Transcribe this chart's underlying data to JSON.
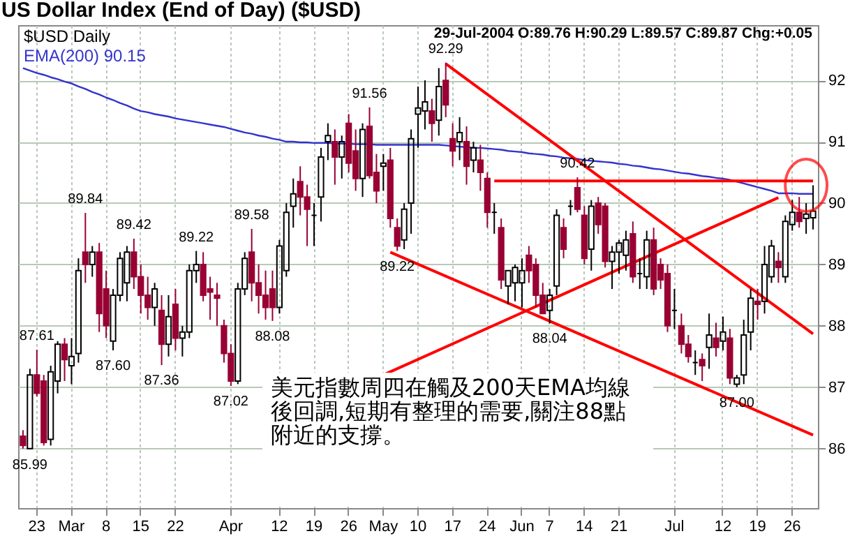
{
  "chart_data": {
    "type": "candlestick",
    "title": "US Dollar Index (End of Day) ($USD)",
    "categories": [
      null,
      null,
      "23",
      null,
      null,
      null,
      null,
      "Mar",
      null,
      null,
      null,
      null,
      "8",
      null,
      null,
      null,
      null,
      "15",
      null,
      null,
      null,
      null,
      "22",
      null,
      null,
      null,
      null,
      null,
      null,
      null,
      "Apr",
      null,
      null,
      null,
      null,
      null,
      null,
      "12",
      null,
      null,
      null,
      null,
      "19",
      null,
      null,
      null,
      null,
      "26",
      null,
      null,
      null,
      null,
      "May",
      null,
      null,
      null,
      null,
      "10",
      null,
      null,
      null,
      null,
      "17",
      null,
      null,
      null,
      null,
      "24",
      null,
      null,
      null,
      null,
      "Jun",
      null,
      null,
      null,
      "7",
      null,
      null,
      null,
      null,
      "14",
      null,
      null,
      null,
      null,
      "21",
      null,
      null,
      null,
      null,
      null,
      null,
      null,
      "Jul",
      null,
      null,
      null,
      null,
      null,
      null,
      "12",
      null,
      null,
      null,
      null,
      "19",
      null,
      null,
      null,
      null,
      "26",
      null,
      null,
      null
    ],
    "series": [
      {
        "name": "$USD Daily",
        "colors": [
          "#990033",
          "#000000",
          "#990033",
          "#990033",
          "#000000",
          "#000000",
          "#990033",
          "#000000",
          "#000000",
          "#990033",
          "#000000",
          "#990033",
          "#990033",
          "#000000",
          "#000000",
          "#000000",
          "#990033",
          "#990033",
          "#990033",
          "#000000",
          "#990033",
          "#000000",
          "#990033",
          "#000000",
          "#000000",
          "#000000",
          "#990033",
          "#990033",
          "#990033",
          "#990033",
          "#990033",
          "#000000",
          "#000000",
          "#990033",
          "#990033",
          "#990033",
          "#990033",
          "#000000",
          "#000000",
          "#000000",
          "#990033",
          "#990033",
          "#000000",
          "#000000",
          "#000000",
          "#990033",
          "#000000",
          "#990033",
          "#990033",
          "#000000",
          "#990033",
          "#990033",
          "#000000",
          "#990033",
          "#990033",
          "#000000",
          "#000000",
          "#000000",
          "#000000",
          "#990033",
          "#000000",
          "#990033",
          "#990033",
          "#000000",
          "#990033",
          "#000000",
          "#990033",
          "#990033",
          "#000000",
          "#990033",
          "#000000",
          "#000000",
          "#000000",
          "#990033",
          "#990033",
          "#990033",
          "#000000",
          "#000000",
          "#990033",
          "#000000",
          "#990033",
          "#990033",
          "#000000",
          "#990033",
          "#990033",
          "#000000",
          "#000000",
          "#000000",
          "#990033",
          "#000000",
          "#000000",
          "#990033",
          "#990033",
          "#990033",
          "#000000",
          "#990033",
          "#990033",
          "#000000",
          "#990033",
          "#000000",
          "#990033",
          "#000000",
          "#990033",
          "#000000",
          "#000000",
          "#000000",
          "#990033",
          "#000000",
          "#000000",
          "#990033",
          "#000000",
          "#000000",
          "#990033",
          "#000000",
          "#000000"
        ],
        "ohlc": [
          [
            86.2,
            86.3,
            86.0,
            86.05
          ],
          [
            86.0,
            87.3,
            85.99,
            87.2
          ],
          [
            87.2,
            87.61,
            86.85,
            86.9
          ],
          [
            87.1,
            87.2,
            86.05,
            86.1
          ],
          [
            86.15,
            87.35,
            86.05,
            87.25
          ],
          [
            87.1,
            87.75,
            86.9,
            87.7
          ],
          [
            87.7,
            87.8,
            87.1,
            87.45
          ],
          [
            87.35,
            87.8,
            87.05,
            87.5
          ],
          [
            87.55,
            89.1,
            87.4,
            88.9
          ],
          [
            89.2,
            89.84,
            88.7,
            89.0
          ],
          [
            89.0,
            89.3,
            88.8,
            89.2
          ],
          [
            89.2,
            89.35,
            87.9,
            88.2
          ],
          [
            88.6,
            88.9,
            87.8,
            88.0
          ],
          [
            87.75,
            88.6,
            87.6,
            88.5
          ],
          [
            88.5,
            89.2,
            88.4,
            89.1
          ],
          [
            88.7,
            89.3,
            88.4,
            89.2
          ],
          [
            89.2,
            89.42,
            88.6,
            88.8
          ],
          [
            88.8,
            89.0,
            88.2,
            88.5
          ],
          [
            88.5,
            88.8,
            88.1,
            88.3
          ],
          [
            88.3,
            88.7,
            88.0,
            88.6
          ],
          [
            88.25,
            88.5,
            87.36,
            87.7
          ],
          [
            87.7,
            88.5,
            87.5,
            88.15
          ],
          [
            88.35,
            88.6,
            87.6,
            87.8
          ],
          [
            87.8,
            88.0,
            87.5,
            87.9
          ],
          [
            87.9,
            89.0,
            87.8,
            88.9
          ],
          [
            88.9,
            89.22,
            88.7,
            89.0
          ],
          [
            89.0,
            89.2,
            88.4,
            88.5
          ],
          [
            88.6,
            88.8,
            88.1,
            88.55
          ],
          [
            88.5,
            88.7,
            88.0,
            88.45
          ],
          [
            88.0,
            88.1,
            87.4,
            87.55
          ],
          [
            87.55,
            87.7,
            87.02,
            87.1
          ],
          [
            87.1,
            88.7,
            87.05,
            88.6
          ],
          [
            88.6,
            89.2,
            88.5,
            89.1
          ],
          [
            89.2,
            89.58,
            88.4,
            88.7
          ],
          [
            88.7,
            89.0,
            88.2,
            88.5
          ],
          [
            88.5,
            88.9,
            88.1,
            88.3
          ],
          [
            88.6,
            88.9,
            88.08,
            88.3
          ],
          [
            88.3,
            89.4,
            88.2,
            89.3
          ],
          [
            88.9,
            90.0,
            88.8,
            89.85
          ],
          [
            89.95,
            90.4,
            89.6,
            90.15
          ],
          [
            90.35,
            90.6,
            89.8,
            90.1
          ],
          [
            90.1,
            90.3,
            89.3,
            89.9
          ],
          [
            89.8,
            90.0,
            89.3,
            89.8
          ],
          [
            90.1,
            90.9,
            89.7,
            90.75
          ],
          [
            91.0,
            91.3,
            90.7,
            91.1
          ],
          [
            91.0,
            91.2,
            90.3,
            90.75
          ],
          [
            90.75,
            91.1,
            90.4,
            91.0
          ],
          [
            91.3,
            91.45,
            90.5,
            90.65
          ],
          [
            90.85,
            91.2,
            90.2,
            90.4
          ],
          [
            90.4,
            91.3,
            90.1,
            91.2
          ],
          [
            91.25,
            91.56,
            90.4,
            90.45
          ],
          [
            90.5,
            90.8,
            90.0,
            90.2
          ],
          [
            90.6,
            90.8,
            90.2,
            90.65
          ],
          [
            90.7,
            90.9,
            89.6,
            89.75
          ],
          [
            89.6,
            89.75,
            89.22,
            89.3
          ],
          [
            89.4,
            90.0,
            89.25,
            89.9
          ],
          [
            90.0,
            91.2,
            89.5,
            91.05
          ],
          [
            91.45,
            91.9,
            90.9,
            91.55
          ],
          [
            91.5,
            92.0,
            91.2,
            91.65
          ],
          [
            91.5,
            91.7,
            91.0,
            91.3
          ],
          [
            91.35,
            92.2,
            91.1,
            91.9
          ],
          [
            92.0,
            92.29,
            91.4,
            91.6
          ],
          [
            91.05,
            91.3,
            90.6,
            90.85
          ],
          [
            91.0,
            91.4,
            90.7,
            91.15
          ],
          [
            91.0,
            91.25,
            90.3,
            90.6
          ],
          [
            90.7,
            91.0,
            90.5,
            90.9
          ],
          [
            90.7,
            90.95,
            90.2,
            90.5
          ],
          [
            90.4,
            90.5,
            89.6,
            89.85
          ],
          [
            89.85,
            90.0,
            89.5,
            89.85
          ],
          [
            89.6,
            89.75,
            88.6,
            88.75
          ],
          [
            88.65,
            88.9,
            88.35,
            88.9
          ],
          [
            88.7,
            89.0,
            88.4,
            88.95
          ],
          [
            88.7,
            89.1,
            88.3,
            88.9
          ],
          [
            89.15,
            89.3,
            88.7,
            88.9
          ],
          [
            89.0,
            89.1,
            88.3,
            88.5
          ],
          [
            88.5,
            88.7,
            88.2,
            88.2
          ],
          [
            88.25,
            88.6,
            88.04,
            88.5
          ],
          [
            88.65,
            89.9,
            88.5,
            89.8
          ],
          [
            89.6,
            89.75,
            89.1,
            89.25
          ],
          [
            89.95,
            90.05,
            89.8,
            89.95
          ],
          [
            90.25,
            90.42,
            89.85,
            89.9
          ],
          [
            89.8,
            89.95,
            89.0,
            89.1
          ],
          [
            89.25,
            90.05,
            88.9,
            89.95
          ],
          [
            90.0,
            90.1,
            89.5,
            89.65
          ],
          [
            89.95,
            90.0,
            88.95,
            89.05
          ],
          [
            89.05,
            89.3,
            88.6,
            89.2
          ],
          [
            89.2,
            89.4,
            88.85,
            89.35
          ],
          [
            89.15,
            89.55,
            88.9,
            89.4
          ],
          [
            89.5,
            89.7,
            88.7,
            88.8
          ],
          [
            88.85,
            89.1,
            88.6,
            88.85
          ],
          [
            88.8,
            89.55,
            88.6,
            89.4
          ],
          [
            89.4,
            89.6,
            88.5,
            88.6
          ],
          [
            89.0,
            89.1,
            88.6,
            88.75
          ],
          [
            88.85,
            89.0,
            87.9,
            88.0
          ],
          [
            88.25,
            88.6,
            87.95,
            88.25
          ],
          [
            88.0,
            88.2,
            87.55,
            87.7
          ],
          [
            87.7,
            87.85,
            87.4,
            87.5
          ],
          [
            87.4,
            87.6,
            87.2,
            87.4
          ],
          [
            87.45,
            87.55,
            87.1,
            87.35
          ],
          [
            87.65,
            88.2,
            87.3,
            87.85
          ],
          [
            87.8,
            88.05,
            87.5,
            87.65
          ],
          [
            87.75,
            88.15,
            87.6,
            87.9
          ],
          [
            87.8,
            87.95,
            87.05,
            87.15
          ],
          [
            87.05,
            87.2,
            87.0,
            87.15
          ],
          [
            87.2,
            88.1,
            87.05,
            87.85
          ],
          [
            87.9,
            88.6,
            87.6,
            88.45
          ],
          [
            88.4,
            88.6,
            88.1,
            88.35
          ],
          [
            88.4,
            89.3,
            88.2,
            89.0
          ],
          [
            88.8,
            89.4,
            88.7,
            89.3
          ],
          [
            89.05,
            89.2,
            88.7,
            88.95
          ],
          [
            88.8,
            89.8,
            88.7,
            89.7
          ],
          [
            89.65,
            90.05,
            89.55,
            89.85
          ],
          [
            89.85,
            90.1,
            89.6,
            89.7
          ],
          [
            89.75,
            90.0,
            89.5,
            89.82
          ],
          [
            89.76,
            90.29,
            89.57,
            89.87
          ]
        ]
      },
      {
        "name": "EMA(200) 90.15",
        "type": "line",
        "color": "#3333cc",
        "values": [
          92.2,
          92.16,
          92.12,
          92.09,
          92.05,
          92.02,
          91.98,
          91.95,
          91.9,
          91.86,
          91.81,
          91.77,
          91.72,
          91.68,
          91.63,
          91.59,
          91.54,
          91.5,
          91.48,
          91.45,
          91.43,
          91.41,
          91.38,
          91.36,
          91.34,
          91.32,
          91.3,
          91.28,
          91.26,
          91.24,
          91.21,
          91.18,
          91.15,
          91.13,
          91.1,
          91.08,
          91.05,
          91.03,
          91.0,
          91.0,
          90.99,
          90.99,
          90.98,
          90.98,
          90.98,
          90.97,
          90.97,
          90.97,
          90.96,
          90.96,
          90.96,
          90.95,
          90.95,
          90.95,
          90.95,
          90.95,
          90.95,
          90.95,
          90.95,
          90.95,
          90.95,
          90.94,
          90.93,
          90.92,
          90.91,
          90.9,
          90.9,
          90.89,
          90.88,
          90.87,
          90.85,
          90.84,
          90.83,
          90.81,
          90.8,
          90.79,
          90.77,
          90.76,
          90.74,
          90.73,
          90.72,
          90.7,
          90.69,
          90.68,
          90.67,
          90.66,
          90.64,
          90.63,
          90.61,
          90.6,
          90.58,
          90.56,
          90.55,
          90.53,
          90.51,
          90.49,
          90.48,
          90.46,
          90.44,
          90.43,
          90.41,
          90.4,
          90.38,
          90.35,
          90.32,
          90.29,
          90.26,
          90.23,
          90.2,
          90.16,
          90.16,
          90.16,
          90.15,
          90.15,
          90.15
        ]
      },
      {
        "type": "line",
        "color": "#ff0000",
        "values": [
          null,
          null,
          null,
          null,
          null,
          null,
          null,
          null,
          null,
          null,
          null,
          null,
          null,
          null,
          null,
          null,
          null,
          null,
          null,
          null,
          null,
          null,
          null,
          null,
          null,
          null,
          null,
          null,
          null,
          null,
          null,
          null,
          null,
          null,
          null,
          null,
          null,
          null,
          null,
          null,
          null,
          null,
          null,
          null,
          null,
          null,
          null,
          null,
          null,
          null,
          null,
          null,
          null,
          null,
          null,
          null,
          null,
          null,
          null,
          null,
          null,
          92.27,
          null,
          null,
          null,
          null,
          null,
          null,
          null,
          null,
          null,
          null,
          null,
          null,
          null,
          null,
          null,
          null,
          null,
          null,
          null,
          null,
          null,
          null,
          null,
          null,
          null,
          null,
          null,
          null,
          null,
          null,
          null,
          null,
          null,
          null,
          null,
          null,
          null,
          null,
          null,
          null,
          null,
          null,
          null,
          null,
          null,
          null,
          null,
          null,
          null,
          null,
          null,
          null,
          87.87
        ]
      },
      {
        "type": "line",
        "color": "#ff0000",
        "values": [
          null,
          null,
          null,
          null,
          null,
          null,
          null,
          null,
          null,
          null,
          null,
          null,
          null,
          null,
          null,
          null,
          null,
          null,
          null,
          null,
          null,
          null,
          null,
          null,
          null,
          null,
          null,
          null,
          null,
          null,
          null,
          null,
          null,
          null,
          null,
          null,
          null,
          null,
          null,
          null,
          null,
          null,
          null,
          null,
          null,
          null,
          null,
          null,
          null,
          null,
          null,
          null,
          null,
          89.2,
          null,
          null,
          null,
          null,
          null,
          null,
          null,
          null,
          null,
          null,
          null,
          null,
          null,
          null,
          null,
          null,
          null,
          null,
          null,
          null,
          null,
          null,
          null,
          null,
          null,
          null,
          null,
          null,
          null,
          null,
          null,
          null,
          null,
          null,
          null,
          null,
          null,
          null,
          null,
          null,
          null,
          null,
          null,
          null,
          null,
          null,
          null,
          null,
          null,
          null,
          null,
          null,
          null,
          null,
          null,
          null,
          null,
          null,
          null,
          null,
          86.22
        ]
      },
      {
        "type": "line",
        "color": "#ff0000",
        "values": [
          null,
          null,
          null,
          null,
          null,
          null,
          null,
          null,
          null,
          null,
          null,
          null,
          null,
          null,
          null,
          null,
          null,
          null,
          null,
          null,
          null,
          null,
          null,
          null,
          null,
          null,
          null,
          null,
          null,
          null,
          null,
          null,
          null,
          null,
          null,
          null,
          null,
          null,
          null,
          null,
          null,
          null,
          null,
          null,
          null,
          null,
          null,
          null,
          null,
          null,
          null,
          null,
          87.2,
          null,
          null,
          null,
          null,
          null,
          null,
          null,
          null,
          null,
          null,
          null,
          null,
          null,
          null,
          null,
          null,
          null,
          null,
          null,
          null,
          null,
          null,
          null,
          null,
          null,
          null,
          null,
          null,
          null,
          null,
          null,
          null,
          null,
          null,
          null,
          null,
          null,
          null,
          null,
          null,
          null,
          null,
          null,
          null,
          null,
          null,
          null,
          null,
          null,
          null,
          null,
          null,
          null,
          null,
          null,
          null,
          90.09,
          null,
          null,
          null,
          null,
          null
        ]
      },
      {
        "type": "line",
        "color": "#ff0000",
        "values": [
          null,
          null,
          null,
          null,
          null,
          null,
          null,
          null,
          null,
          null,
          null,
          null,
          null,
          null,
          null,
          null,
          null,
          null,
          null,
          null,
          null,
          null,
          null,
          null,
          null,
          null,
          null,
          null,
          null,
          null,
          null,
          null,
          null,
          null,
          null,
          null,
          null,
          null,
          null,
          null,
          null,
          null,
          null,
          null,
          null,
          null,
          null,
          null,
          null,
          null,
          null,
          null,
          null,
          null,
          null,
          null,
          null,
          null,
          null,
          null,
          null,
          null,
          null,
          null,
          null,
          null,
          null,
          null,
          90.36,
          null,
          null,
          null,
          null,
          null,
          null,
          null,
          null,
          null,
          null,
          null,
          null,
          null,
          null,
          null,
          null,
          null,
          null,
          null,
          null,
          null,
          null,
          null,
          null,
          null,
          null,
          null,
          null,
          null,
          null,
          null,
          null,
          null,
          null,
          null,
          null,
          null,
          null,
          null,
          null,
          null,
          null,
          null,
          null,
          null,
          90.36
        ]
      }
    ],
    "ylim": [
      85.03,
      92.9
    ],
    "yticks": [
      86,
      87,
      88,
      89,
      90,
      91,
      92
    ],
    "grid": true,
    "legend": "top left",
    "annotations": [
      "29-Jul-2004 O:89.76 H:90.29 L:89.57 C:89.87 Chg:+0.05",
      "美元指數周四在觸及200天EMA均線後回調,短期有整理的需要,關注88點附近的支撐。",
      {
        "text": "85.99",
        "y": 85.99
      },
      {
        "text": "87.61",
        "y": 87.61
      },
      {
        "text": "89.84",
        "y": 89.84
      },
      {
        "text": "87.60",
        "y": 87.6
      },
      {
        "text": "89.42",
        "y": 89.42
      },
      {
        "text": "87.36",
        "y": 87.36
      },
      {
        "text": "89.22",
        "y": 89.22
      },
      {
        "text": "87.02",
        "y": 87.02
      },
      {
        "text": "89.58",
        "y": 89.58
      },
      {
        "text": "88.08",
        "y": 88.08
      },
      {
        "text": "91.56",
        "y": 91.56
      },
      {
        "text": "89.22",
        "y": 89.22
      },
      {
        "text": "92.29",
        "y": 92.29
      },
      {
        "text": "88.04",
        "y": 88.04
      },
      {
        "text": "90.42",
        "y": 90.42
      },
      {
        "text": "87.00",
        "y": 87.0
      }
    ]
  }
}
